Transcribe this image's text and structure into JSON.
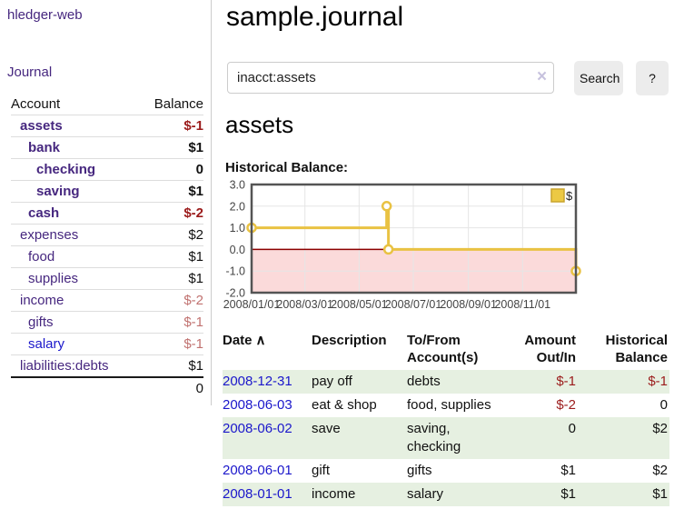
{
  "app": {
    "brand": "hledger-web",
    "nav_journal": "Journal"
  },
  "colors": {
    "link_purple": "#46277f",
    "link_blue": "#1b17cb",
    "negative": "#9b1b1b",
    "negative_muted": "#c17270",
    "row_stripe_green": "#e6f0e1",
    "button_bg": "#ececec",
    "chart_line_yellow": "#e9c243",
    "chart_legend_fill": "#ecc944",
    "chart_legend_border": "#c9a42d",
    "chart_negative_fill": "#fbdada",
    "chart_zero_line": "#8b0000",
    "chart_border": "#545454",
    "chart_grid": "#e5e5e5",
    "chart_tick_text": "#444444"
  },
  "sidebar": {
    "header_account": "Account",
    "header_balance": "Balance",
    "accounts": [
      {
        "name": "assets",
        "indent": 0,
        "bold": true,
        "name_style": "purple",
        "balance": "$-1",
        "balance_style": "negative"
      },
      {
        "name": "bank",
        "indent": 1,
        "bold": true,
        "name_style": "purple",
        "balance": "$1",
        "balance_style": "normal"
      },
      {
        "name": "checking",
        "indent": 2,
        "bold": true,
        "name_style": "purple",
        "balance": "0",
        "balance_style": "normal"
      },
      {
        "name": "saving",
        "indent": 2,
        "bold": true,
        "name_style": "purple",
        "balance": "$1",
        "balance_style": "normal"
      },
      {
        "name": "cash",
        "indent": 1,
        "bold": true,
        "name_style": "purple",
        "balance": "$-2",
        "balance_style": "negative"
      },
      {
        "name": "expenses",
        "indent": 0,
        "bold": false,
        "name_style": "purple",
        "balance": "$2",
        "balance_style": "normal"
      },
      {
        "name": "food",
        "indent": 1,
        "bold": false,
        "name_style": "purple",
        "balance": "$1",
        "balance_style": "normal"
      },
      {
        "name": "supplies",
        "indent": 1,
        "bold": false,
        "name_style": "purple",
        "balance": "$1",
        "balance_style": "normal"
      },
      {
        "name": "income",
        "indent": 0,
        "bold": false,
        "name_style": "purple",
        "balance": "$-2",
        "balance_style": "negative-muted"
      },
      {
        "name": "gifts",
        "indent": 1,
        "bold": false,
        "name_style": "purple",
        "balance": "$-1",
        "balance_style": "negative-muted"
      },
      {
        "name": "salary",
        "indent": 1,
        "bold": false,
        "name_style": "blue",
        "balance": "$-1",
        "balance_style": "negative-muted"
      },
      {
        "name": "liabilities:debts",
        "indent": 0,
        "bold": false,
        "name_style": "purple",
        "balance": "$1",
        "balance_style": "normal"
      }
    ],
    "total": "0"
  },
  "main": {
    "title": "sample.journal",
    "search": {
      "value": "inacct:assets",
      "clear_icon": "×",
      "button_label": "Search",
      "help_label": "?"
    },
    "heading": "assets",
    "chart_label": "Historical Balance:"
  },
  "chart_data": {
    "type": "line",
    "title": "Historical Balance:",
    "series": [
      {
        "name": "$",
        "step": "after",
        "points": [
          {
            "date": "2008-01-01",
            "value": 1
          },
          {
            "date": "2008-06-01",
            "value": 2
          },
          {
            "date": "2008-06-03",
            "value": 0
          },
          {
            "date": "2008-12-31",
            "value": -1
          }
        ]
      }
    ],
    "x_range": [
      "2008-01-01",
      "2008-12-31"
    ],
    "x_ticks": [
      "2008/01/01",
      "2008/03/01",
      "2008/05/01",
      "2008/07/01",
      "2008/09/01",
      "2008/11/01"
    ],
    "y_ticks": [
      3.0,
      2.0,
      1.0,
      0.0,
      -1.0,
      -2.0
    ],
    "y_tick_labels": [
      "3.0",
      "2.0",
      "1.0",
      "0.0",
      "-1.0",
      "-2.0"
    ],
    "ylim": [
      -2.0,
      3.0
    ],
    "legend_position": "top-right",
    "grid": true,
    "negative_region_shaded": true
  },
  "register": {
    "sort_icon": "∧",
    "headers": [
      {
        "label": "Date",
        "align": "left",
        "sorted": true
      },
      {
        "label": "Description",
        "align": "left"
      },
      {
        "label": "To/From Account(s)",
        "align": "left"
      },
      {
        "label": "Amount Out/In",
        "align": "right"
      },
      {
        "label": "Historical Balance",
        "align": "right"
      }
    ],
    "rows": [
      {
        "date": "2008-12-31",
        "description": "pay off",
        "accounts": "debts",
        "amount": "$-1",
        "amount_negative": true,
        "balance": "$-1",
        "balance_negative": true
      },
      {
        "date": "2008-06-03",
        "description": "eat & shop",
        "accounts": "food, supplies",
        "amount": "$-2",
        "amount_negative": true,
        "balance": "0",
        "balance_negative": false
      },
      {
        "date": "2008-06-02",
        "description": "save",
        "accounts": "saving, checking",
        "amount": "0",
        "amount_negative": false,
        "balance": "$2",
        "balance_negative": false
      },
      {
        "date": "2008-06-01",
        "description": "gift",
        "accounts": "gifts",
        "amount": "$1",
        "amount_negative": false,
        "balance": "$2",
        "balance_negative": false
      },
      {
        "date": "2008-01-01",
        "description": "income",
        "accounts": "salary",
        "amount": "$1",
        "amount_negative": false,
        "balance": "$1",
        "balance_negative": false
      }
    ]
  }
}
